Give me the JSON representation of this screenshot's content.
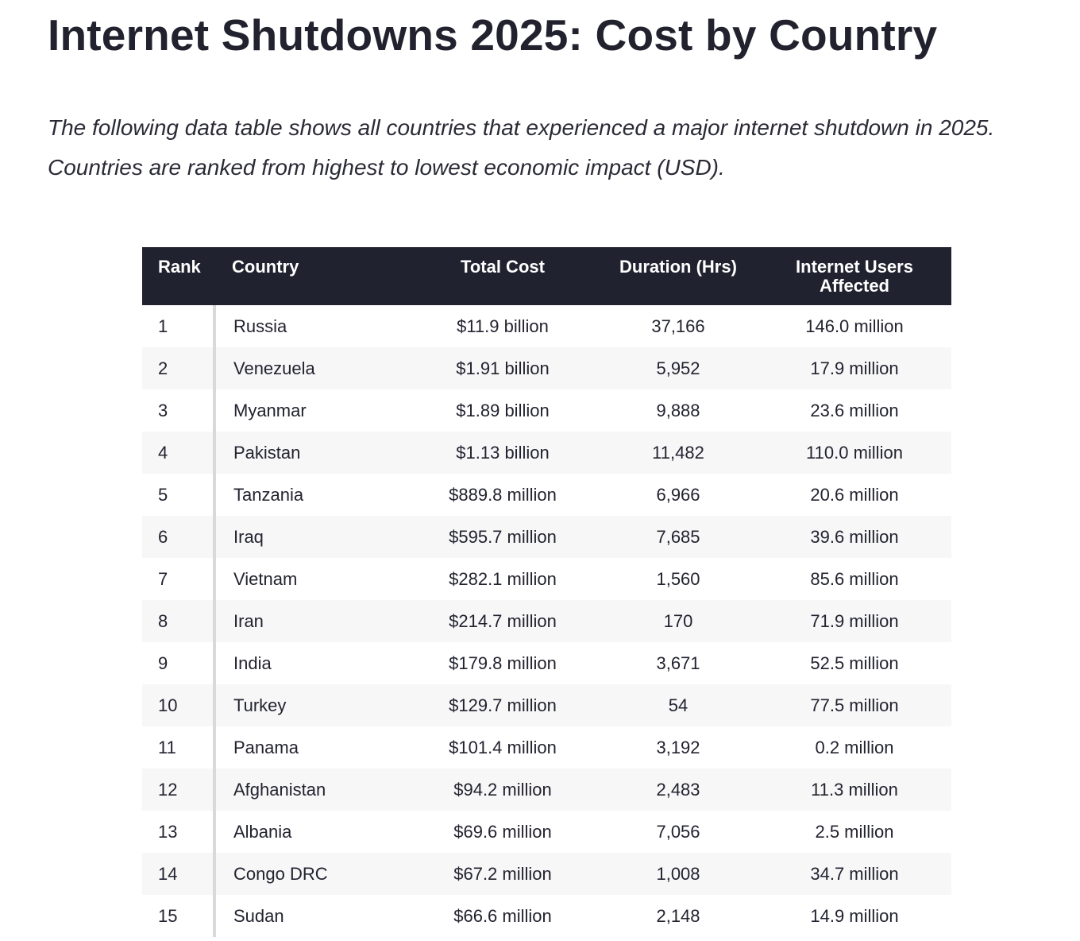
{
  "page": {
    "title": "Internet Shutdowns 2025: Cost by Country",
    "intro": "The following data table shows all countries that experienced a major internet shutdown in 2025. Countries are ranked from highest to lowest economic impact (USD)."
  },
  "table": {
    "headers": {
      "rank": "Rank",
      "country": "Country",
      "total_cost": "Total Cost",
      "duration": "Duration (Hrs)",
      "users_line1": "Internet Users",
      "users_line2": "Affected"
    },
    "rows": [
      {
        "rank": "1",
        "country": "Russia",
        "total_cost": "$11.9 billion",
        "duration": "37,166",
        "users": "146.0 million"
      },
      {
        "rank": "2",
        "country": "Venezuela",
        "total_cost": "$1.91 billion",
        "duration": "5,952",
        "users": "17.9 million"
      },
      {
        "rank": "3",
        "country": "Myanmar",
        "total_cost": "$1.89 billion",
        "duration": "9,888",
        "users": "23.6 million"
      },
      {
        "rank": "4",
        "country": "Pakistan",
        "total_cost": "$1.13 billion",
        "duration": "11,482",
        "users": "110.0 million"
      },
      {
        "rank": "5",
        "country": "Tanzania",
        "total_cost": "$889.8 million",
        "duration": "6,966",
        "users": "20.6 million"
      },
      {
        "rank": "6",
        "country": "Iraq",
        "total_cost": "$595.7 million",
        "duration": "7,685",
        "users": "39.6 million"
      },
      {
        "rank": "7",
        "country": "Vietnam",
        "total_cost": "$282.1 million",
        "duration": "1,560",
        "users": "85.6 million"
      },
      {
        "rank": "8",
        "country": "Iran",
        "total_cost": "$214.7 million",
        "duration": "170",
        "users": "71.9 million"
      },
      {
        "rank": "9",
        "country": "India",
        "total_cost": "$179.8 million",
        "duration": "3,671",
        "users": "52.5 million"
      },
      {
        "rank": "10",
        "country": "Turkey",
        "total_cost": "$129.7 million",
        "duration": "54",
        "users": "77.5 million"
      },
      {
        "rank": "11",
        "country": "Panama",
        "total_cost": "$101.4 million",
        "duration": "3,192",
        "users": "0.2 million"
      },
      {
        "rank": "12",
        "country": "Afghanistan",
        "total_cost": "$94.2 million",
        "duration": "2,483",
        "users": "11.3 million"
      },
      {
        "rank": "13",
        "country": "Albania",
        "total_cost": "$69.6 million",
        "duration": "7,056",
        "users": "2.5 million"
      },
      {
        "rank": "14",
        "country": "Congo DRC",
        "total_cost": "$67.2 million",
        "duration": "1,008",
        "users": "34.7 million"
      },
      {
        "rank": "15",
        "country": "Sudan",
        "total_cost": "$66.6 million",
        "duration": "2,148",
        "users": "14.9 million"
      }
    ]
  },
  "colors": {
    "header_bg": "#212230",
    "header_text": "#ffffff",
    "zebra_row": "#f7f7f8",
    "text": "#22232f"
  }
}
